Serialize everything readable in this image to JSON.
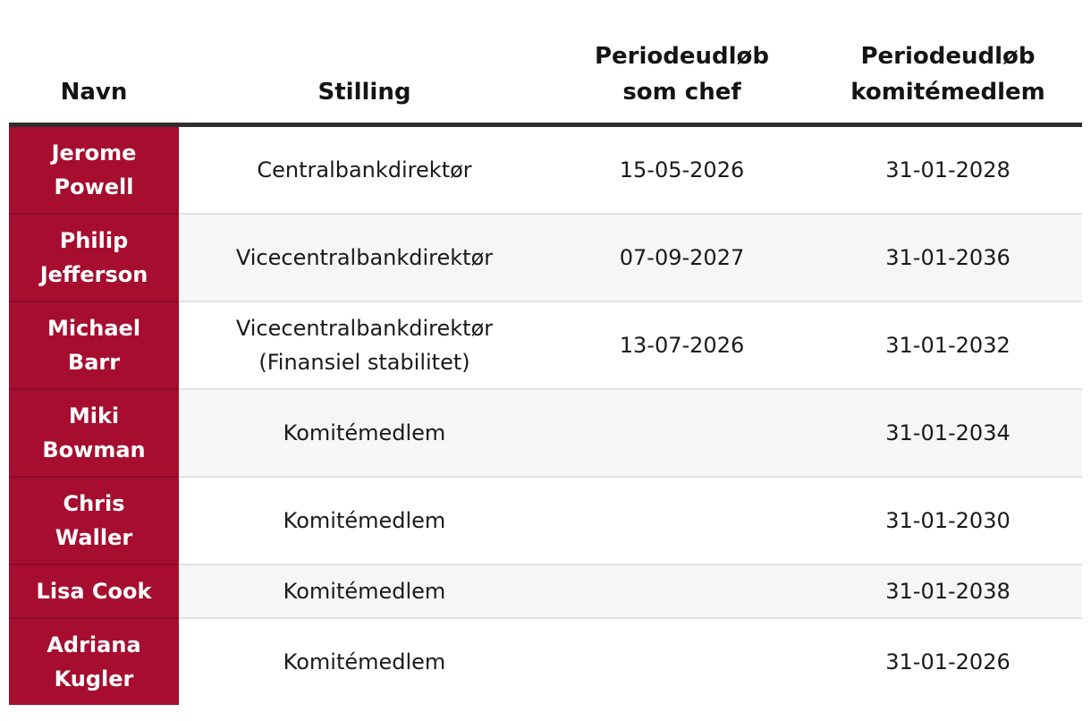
{
  "header": {
    "columns": [
      {
        "label": "Navn"
      },
      {
        "label": "Stilling"
      },
      {
        "label": "Periodeudløb\nsom chef"
      },
      {
        "label": "Periodeudløb\nkomitémedlem"
      }
    ]
  },
  "rows": [
    {
      "name": "Jerome\nPowell",
      "position": "Centralbankdirektør",
      "chief_term": "15-05-2026",
      "member_term": "31-01-2028"
    },
    {
      "name": "Philip\nJefferson",
      "position": "Vicecentralbankdirektør",
      "chief_term": "07-09-2027",
      "member_term": "31-01-2036"
    },
    {
      "name": "Michael\nBarr",
      "position": "Vicecentralbankdirektør\n(Finansiel stabilitet)",
      "chief_term": "13-07-2026",
      "member_term": "31-01-2032"
    },
    {
      "name": "Miki\nBowman",
      "position": "Komitémedlem",
      "chief_term": "",
      "member_term": "31-01-2034"
    },
    {
      "name": "Chris\nWaller",
      "position": "Komitémedlem",
      "chief_term": "",
      "member_term": "31-01-2030"
    },
    {
      "name": "Lisa Cook",
      "position": "Komitémedlem",
      "chief_term": "",
      "member_term": "31-01-2038"
    },
    {
      "name": "Adriana\nKugler",
      "position": "Komitémedlem",
      "chief_term": "",
      "member_term": "31-01-2026"
    }
  ],
  "colors": {
    "name_column_background": "#a60d2f",
    "name_column_divider": "#8d0b2a",
    "header_border": "#2e2e2e",
    "alt_row_background": "#f6f6f7",
    "row_divider": "#e3e3e3",
    "header_text": "#141414",
    "body_text": "#1a1a1a",
    "name_text": "#ffffff"
  },
  "chart_data": {
    "type": "table",
    "title": "",
    "columns": [
      "Navn",
      "Stilling",
      "Periodeudløb som chef",
      "Periodeudløb komitémedlem"
    ],
    "rows": [
      [
        "Jerome Powell",
        "Centralbankdirektør",
        "15-05-2026",
        "31-01-2028"
      ],
      [
        "Philip Jefferson",
        "Vicecentralbankdirektør",
        "07-09-2027",
        "31-01-2036"
      ],
      [
        "Michael Barr",
        "Vicecentralbankdirektør (Finansiel stabilitet)",
        "13-07-2026",
        "31-01-2032"
      ],
      [
        "Miki Bowman",
        "Komitémedlem",
        "",
        "31-01-2034"
      ],
      [
        "Chris Waller",
        "Komitémedlem",
        "",
        "31-01-2030"
      ],
      [
        "Lisa Cook",
        "Komitémedlem",
        "",
        "31-01-2038"
      ],
      [
        "Adriana Kugler",
        "Komitémedlem",
        "",
        "31-01-2026"
      ]
    ],
    "layout_hints": {
      "name_column_highlighted": true,
      "zebra_striping": true,
      "header_alignment": "center",
      "cell_alignment": "center"
    }
  }
}
